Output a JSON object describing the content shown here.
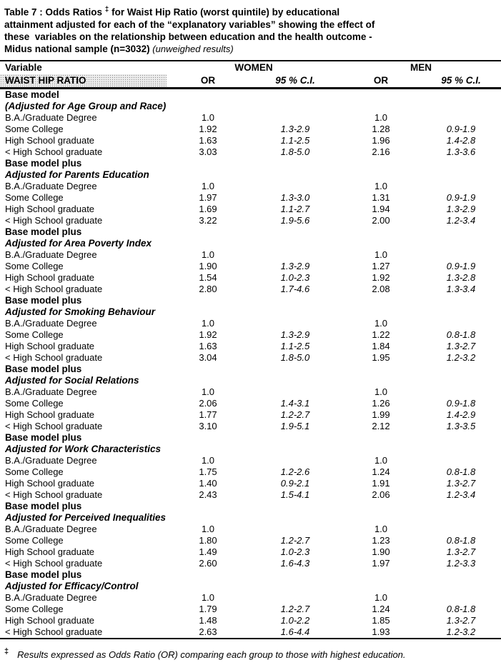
{
  "title": {
    "line1_pre": "Table 7 : Odds Ratios ",
    "dagger": "‡",
    "line1_post": " for Waist Hip Ratio (worst quintile) by educational",
    "line2": "attainment adjusted for each of the “explanatory variables” showing the effect of",
    "line3": "these  variables on the relationship between education and the health outcome -",
    "line4_bold": "Midus national sample (n=3032)",
    "line4_italic": " (unweighed results)"
  },
  "header": {
    "variable_label": "Variable",
    "women_label": "WOMEN",
    "men_label": "MEN",
    "outcome_label": "WAIST HIP RATIO",
    "or_label": "OR",
    "ci_label": "95 % C.I."
  },
  "sections": [
    {
      "heading": "Base model",
      "subheading": "(Adjusted for Age Group and Race)",
      "rows": [
        {
          "label": "B.A./Graduate Degree",
          "women_or": "1.0",
          "women_ci": "",
          "men_or": "1.0",
          "men_ci": ""
        },
        {
          "label": "Some College",
          "women_or": "1.92",
          "women_ci": "1.3-2.9",
          "men_or": "1.28",
          "men_ci": "0.9-1.9"
        },
        {
          "label": "High School graduate",
          "women_or": "1.63",
          "women_ci": "1.1-2.5",
          "men_or": "1.96",
          "men_ci": "1.4-2.8"
        },
        {
          "label": "< High School graduate",
          "women_or": "3.03",
          "women_ci": "1.8-5.0",
          "men_or": "2.16",
          "men_ci": "1.3-3.6"
        }
      ]
    },
    {
      "heading": "Base model plus",
      "subheading": "Adjusted for Parents Education",
      "rows": [
        {
          "label": "B.A./Graduate Degree",
          "women_or": "1.0",
          "women_ci": "",
          "men_or": "1.0",
          "men_ci": ""
        },
        {
          "label": "Some College",
          "women_or": "1.97",
          "women_ci": "1.3-3.0",
          "men_or": "1.31",
          "men_ci": "0.9-1.9"
        },
        {
          "label": "High School graduate",
          "women_or": "1.69",
          "women_ci": "1.1-2.7",
          "men_or": "1.94",
          "men_ci": "1.3-2.9"
        },
        {
          "label": "< High School graduate",
          "women_or": "3.22",
          "women_ci": "1.9-5.6",
          "men_or": "2.00",
          "men_ci": "1.2-3.4"
        }
      ]
    },
    {
      "heading": "Base model plus",
      "subheading": "Adjusted for Area Poverty Index",
      "rows": [
        {
          "label": "B.A./Graduate Degree",
          "women_or": "1.0",
          "women_ci": "",
          "men_or": "1.0",
          "men_ci": ""
        },
        {
          "label": "Some College",
          "women_or": "1.90",
          "women_ci": "1.3-2.9",
          "men_or": "1.27",
          "men_ci": "0.9-1.9"
        },
        {
          "label": "High School graduate",
          "women_or": "1.54",
          "women_ci": "1.0-2.3",
          "men_or": "1.92",
          "men_ci": "1.3-2.8"
        },
        {
          "label": "< High School graduate",
          "women_or": "2.80",
          "women_ci": "1.7-4.6",
          "men_or": "2.08",
          "men_ci": "1.3-3.4"
        }
      ]
    },
    {
      "heading": "Base model plus",
      "subheading": "Adjusted for Smoking Behaviour",
      "rows": [
        {
          "label": "B.A./Graduate Degree",
          "women_or": "1.0",
          "women_ci": "",
          "men_or": "1.0",
          "men_ci": ""
        },
        {
          "label": "Some College",
          "women_or": "1.92",
          "women_ci": "1.3-2.9",
          "men_or": "1.22",
          "men_ci": "0.8-1.8"
        },
        {
          "label": "High School graduate",
          "women_or": "1.63",
          "women_ci": "1.1-2.5",
          "men_or": "1.84",
          "men_ci": "1.3-2.7"
        },
        {
          "label": "< High School graduate",
          "women_or": "3.04",
          "women_ci": "1.8-5.0",
          "men_or": "1.95",
          "men_ci": "1.2-3.2"
        }
      ]
    },
    {
      "heading": "Base model plus",
      "subheading": "Adjusted for Social Relations",
      "rows": [
        {
          "label": "B.A./Graduate Degree",
          "women_or": "1.0",
          "women_ci": "",
          "men_or": "1.0",
          "men_ci": ""
        },
        {
          "label": "Some College",
          "women_or": "2.06",
          "women_ci": "1.4-3.1",
          "men_or": "1.26",
          "men_ci": "0.9-1.8"
        },
        {
          "label": "High School graduate",
          "women_or": "1.77",
          "women_ci": "1.2-2.7",
          "men_or": "1.99",
          "men_ci": "1.4-2.9"
        },
        {
          "label": "< High School graduate",
          "women_or": "3.10",
          "women_ci": "1.9-5.1",
          "men_or": "2.12",
          "men_ci": "1.3-3.5"
        }
      ]
    },
    {
      "heading": "Base model plus",
      "subheading": "Adjusted for Work Characteristics",
      "rows": [
        {
          "label": "B.A./Graduate Degree",
          "women_or": "1.0",
          "women_ci": "",
          "men_or": "1.0",
          "men_ci": ""
        },
        {
          "label": "Some College",
          "women_or": "1.75",
          "women_ci": "1.2-2.6",
          "men_or": "1.24",
          "men_ci": "0.8-1.8"
        },
        {
          "label": "High School graduate",
          "women_or": "1.40",
          "women_ci": "0.9-2.1",
          "men_or": "1.91",
          "men_ci": "1.3-2.7"
        },
        {
          "label": "< High School graduate",
          "women_or": "2.43",
          "women_ci": "1.5-4.1",
          "men_or": "2.06",
          "men_ci": "1.2-3.4"
        }
      ]
    },
    {
      "heading": "Base model plus",
      "subheading": "Adjusted for Perceived Inequalities",
      "rows": [
        {
          "label": "B.A./Graduate Degree",
          "women_or": "1.0",
          "women_ci": "",
          "men_or": "1.0",
          "men_ci": ""
        },
        {
          "label": "Some College",
          "women_or": "1.80",
          "women_ci": "1.2-2.7",
          "men_or": "1.23",
          "men_ci": "0.8-1.8"
        },
        {
          "label": "High School graduate",
          "women_or": "1.49",
          "women_ci": "1.0-2.3",
          "men_or": "1.90",
          "men_ci": "1.3-2.7"
        },
        {
          "label": "< High School graduate",
          "women_or": "2.60",
          "women_ci": "1.6-4.3",
          "men_or": "1.97",
          "men_ci": "1.2-3.3"
        }
      ]
    },
    {
      "heading": "Base model plus",
      "subheading": "Adjusted for Efficacy/Control",
      "rows": [
        {
          "label": "B.A./Graduate Degree",
          "women_or": "1.0",
          "women_ci": "",
          "men_or": "1.0",
          "men_ci": ""
        },
        {
          "label": "Some College",
          "women_or": "1.79",
          "women_ci": "1.2-2.7",
          "men_or": "1.24",
          "men_ci": "0.8-1.8"
        },
        {
          "label": "High School graduate",
          "women_or": "1.48",
          "women_ci": "1.0-2.2",
          "men_or": "1.85",
          "men_ci": "1.3-2.7"
        },
        {
          "label": "< High School graduate",
          "women_or": "2.63",
          "women_ci": "1.6-4.4",
          "men_or": "1.93",
          "men_ci": "1.2-3.2"
        }
      ]
    }
  ],
  "footnote": {
    "dagger": "‡",
    "text": "Results expressed as Odds Ratio (OR) comparing each group to those with highest education."
  }
}
